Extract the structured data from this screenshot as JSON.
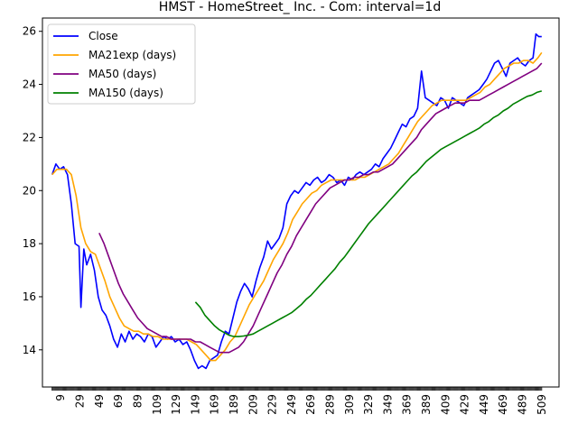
{
  "chart_data": {
    "type": "line",
    "title": "HMST - HomeStreet_ Inc. - Com: interval=1d",
    "xlabel": "",
    "ylabel": "",
    "xlim": [
      -10,
      527
    ],
    "ylim": [
      12.6,
      26.5
    ],
    "x_ticks": [
      9,
      29,
      49,
      69,
      89,
      109,
      129,
      149,
      169,
      189,
      209,
      229,
      249,
      269,
      289,
      309,
      329,
      349,
      369,
      389,
      409,
      429,
      449,
      469,
      489,
      509
    ],
    "y_ticks": [
      14,
      16,
      18,
      20,
      22,
      24,
      26
    ],
    "grid": false,
    "legend_position": "top-left",
    "series": [
      {
        "name": "Close",
        "color": "#0000ff",
        "x": [
          0,
          4,
          8,
          12,
          16,
          20,
          24,
          28,
          30,
          33,
          36,
          40,
          44,
          48,
          52,
          56,
          60,
          64,
          68,
          72,
          76,
          80,
          84,
          88,
          92,
          96,
          100,
          104,
          108,
          112,
          116,
          120,
          124,
          128,
          132,
          136,
          140,
          144,
          148,
          152,
          156,
          160,
          164,
          168,
          172,
          176,
          180,
          184,
          188,
          192,
          196,
          200,
          204,
          208,
          212,
          216,
          220,
          224,
          228,
          232,
          236,
          240,
          244,
          248,
          252,
          256,
          260,
          264,
          268,
          272,
          276,
          280,
          284,
          288,
          292,
          296,
          300,
          304,
          308,
          312,
          316,
          320,
          324,
          328,
          332,
          336,
          340,
          344,
          348,
          352,
          356,
          360,
          364,
          368,
          372,
          376,
          380,
          384,
          388,
          392,
          396,
          400,
          404,
          408,
          412,
          416,
          420,
          424,
          428,
          432,
          436,
          440,
          444,
          448,
          452,
          456,
          460,
          464,
          468,
          472,
          476,
          480,
          484,
          488,
          492,
          496,
          500,
          503,
          506,
          509
        ],
        "y": [
          20.6,
          21.0,
          20.8,
          20.9,
          20.6,
          19.5,
          18.0,
          17.9,
          15.6,
          17.8,
          17.2,
          17.6,
          17.0,
          16.0,
          15.5,
          15.3,
          14.9,
          14.4,
          14.1,
          14.6,
          14.3,
          14.7,
          14.4,
          14.6,
          14.5,
          14.3,
          14.6,
          14.5,
          14.1,
          14.3,
          14.5,
          14.4,
          14.5,
          14.3,
          14.4,
          14.2,
          14.3,
          14.0,
          13.6,
          13.3,
          13.4,
          13.3,
          13.6,
          13.7,
          13.8,
          14.3,
          14.7,
          14.6,
          15.2,
          15.8,
          16.2,
          16.5,
          16.3,
          16.0,
          16.6,
          17.1,
          17.5,
          18.1,
          17.8,
          18.0,
          18.2,
          18.6,
          19.5,
          19.8,
          20.0,
          19.9,
          20.1,
          20.3,
          20.2,
          20.4,
          20.5,
          20.3,
          20.4,
          20.6,
          20.5,
          20.3,
          20.4,
          20.2,
          20.5,
          20.4,
          20.6,
          20.7,
          20.6,
          20.7,
          20.8,
          21.0,
          20.9,
          21.2,
          21.4,
          21.6,
          21.9,
          22.2,
          22.5,
          22.4,
          22.7,
          22.8,
          23.1,
          24.5,
          23.5,
          23.4,
          23.3,
          23.2,
          23.5,
          23.4,
          23.1,
          23.5,
          23.4,
          23.3,
          23.2,
          23.5,
          23.6,
          23.7,
          23.8,
          24.0,
          24.2,
          24.5,
          24.8,
          24.9,
          24.6,
          24.3,
          24.8,
          24.9,
          25.0,
          24.8,
          24.7,
          24.9,
          25.0,
          25.9,
          25.8,
          25.8
        ]
      },
      {
        "name": "MA21exp (days)",
        "color": "#ffa500",
        "x": [
          0,
          5,
          10,
          15,
          20,
          25,
          30,
          35,
          40,
          45,
          50,
          55,
          60,
          65,
          70,
          75,
          80,
          85,
          90,
          95,
          100,
          105,
          110,
          115,
          120,
          125,
          130,
          135,
          140,
          145,
          150,
          155,
          160,
          165,
          170,
          175,
          180,
          185,
          190,
          195,
          200,
          205,
          210,
          215,
          220,
          225,
          230,
          235,
          240,
          245,
          250,
          255,
          260,
          265,
          270,
          275,
          280,
          285,
          290,
          295,
          300,
          305,
          310,
          315,
          320,
          325,
          330,
          335,
          340,
          345,
          350,
          355,
          360,
          365,
          370,
          375,
          380,
          385,
          390,
          395,
          400,
          405,
          410,
          415,
          420,
          425,
          430,
          435,
          440,
          445,
          450,
          455,
          460,
          465,
          470,
          475,
          480,
          485,
          490,
          495,
          500,
          505,
          509
        ],
        "y": [
          20.6,
          20.8,
          20.8,
          20.8,
          20.6,
          19.8,
          18.6,
          18.0,
          17.7,
          17.6,
          17.1,
          16.6,
          16.0,
          15.6,
          15.2,
          14.9,
          14.8,
          14.7,
          14.7,
          14.6,
          14.6,
          14.5,
          14.5,
          14.4,
          14.4,
          14.4,
          14.4,
          14.4,
          14.4,
          14.3,
          14.2,
          14.0,
          13.8,
          13.6,
          13.6,
          13.8,
          14.0,
          14.3,
          14.5,
          14.9,
          15.3,
          15.7,
          16.0,
          16.3,
          16.6,
          17.0,
          17.4,
          17.7,
          18.0,
          18.4,
          18.9,
          19.2,
          19.5,
          19.7,
          19.9,
          20.0,
          20.2,
          20.3,
          20.4,
          20.4,
          20.4,
          20.4,
          20.4,
          20.4,
          20.5,
          20.5,
          20.6,
          20.7,
          20.8,
          20.9,
          21.0,
          21.2,
          21.4,
          21.7,
          22.0,
          22.3,
          22.6,
          22.8,
          23.0,
          23.2,
          23.3,
          23.4,
          23.4,
          23.4,
          23.4,
          23.4,
          23.4,
          23.5,
          23.6,
          23.7,
          23.9,
          24.0,
          24.2,
          24.4,
          24.6,
          24.7,
          24.8,
          24.8,
          24.9,
          24.9,
          24.8,
          25.0,
          25.2
        ]
      },
      {
        "name": "MA50 (days)",
        "color": "#800080",
        "x": [
          49,
          54,
          59,
          64,
          69,
          74,
          79,
          84,
          89,
          94,
          99,
          104,
          109,
          114,
          119,
          124,
          129,
          134,
          139,
          144,
          149,
          154,
          159,
          164,
          169,
          174,
          179,
          184,
          189,
          194,
          199,
          204,
          209,
          214,
          219,
          224,
          229,
          234,
          239,
          244,
          249,
          254,
          259,
          264,
          269,
          274,
          279,
          284,
          289,
          294,
          299,
          304,
          309,
          314,
          319,
          324,
          329,
          334,
          339,
          344,
          349,
          354,
          359,
          364,
          369,
          374,
          379,
          384,
          389,
          394,
          399,
          404,
          409,
          414,
          419,
          424,
          429,
          434,
          439,
          444,
          449,
          454,
          459,
          464,
          469,
          474,
          479,
          484,
          489,
          494,
          499,
          504,
          509
        ],
        "y": [
          18.4,
          18.0,
          17.5,
          17.0,
          16.5,
          16.1,
          15.8,
          15.5,
          15.2,
          15.0,
          14.8,
          14.7,
          14.6,
          14.5,
          14.5,
          14.4,
          14.4,
          14.4,
          14.4,
          14.4,
          14.3,
          14.3,
          14.2,
          14.1,
          14.0,
          13.9,
          13.9,
          13.9,
          14.0,
          14.1,
          14.3,
          14.6,
          14.9,
          15.3,
          15.7,
          16.1,
          16.5,
          16.9,
          17.2,
          17.6,
          17.9,
          18.3,
          18.6,
          18.9,
          19.2,
          19.5,
          19.7,
          19.9,
          20.1,
          20.2,
          20.3,
          20.4,
          20.4,
          20.5,
          20.5,
          20.6,
          20.6,
          20.7,
          20.7,
          20.8,
          20.9,
          21.0,
          21.2,
          21.4,
          21.6,
          21.8,
          22.0,
          22.3,
          22.5,
          22.7,
          22.9,
          23.0,
          23.1,
          23.2,
          23.3,
          23.3,
          23.3,
          23.4,
          23.4,
          23.4,
          23.5,
          23.6,
          23.7,
          23.8,
          23.9,
          24.0,
          24.1,
          24.2,
          24.3,
          24.4,
          24.5,
          24.6,
          24.8
        ]
      },
      {
        "name": "MA150 (days)",
        "color": "#008000",
        "x": [
          149,
          154,
          159,
          164,
          169,
          174,
          179,
          184,
          189,
          194,
          199,
          204,
          209,
          214,
          219,
          224,
          229,
          234,
          239,
          244,
          249,
          254,
          259,
          264,
          269,
          274,
          279,
          284,
          289,
          294,
          299,
          304,
          309,
          314,
          319,
          324,
          329,
          334,
          339,
          344,
          349,
          354,
          359,
          364,
          369,
          374,
          379,
          384,
          389,
          394,
          399,
          404,
          409,
          414,
          419,
          424,
          429,
          434,
          439,
          444,
          449,
          454,
          459,
          464,
          469,
          474,
          479,
          484,
          489,
          494,
          499,
          504,
          509
        ],
        "y": [
          15.8,
          15.6,
          15.3,
          15.1,
          14.9,
          14.75,
          14.65,
          14.55,
          14.5,
          14.5,
          14.52,
          14.55,
          14.6,
          14.7,
          14.8,
          14.9,
          15.0,
          15.1,
          15.2,
          15.3,
          15.4,
          15.55,
          15.7,
          15.9,
          16.05,
          16.25,
          16.45,
          16.65,
          16.85,
          17.05,
          17.3,
          17.5,
          17.75,
          18.0,
          18.25,
          18.5,
          18.75,
          18.95,
          19.15,
          19.35,
          19.55,
          19.75,
          19.95,
          20.15,
          20.35,
          20.55,
          20.7,
          20.9,
          21.1,
          21.25,
          21.4,
          21.55,
          21.65,
          21.75,
          21.85,
          21.95,
          22.05,
          22.15,
          22.25,
          22.35,
          22.5,
          22.6,
          22.75,
          22.85,
          23.0,
          23.1,
          23.25,
          23.35,
          23.45,
          23.55,
          23.6,
          23.7,
          23.75
        ]
      }
    ]
  }
}
